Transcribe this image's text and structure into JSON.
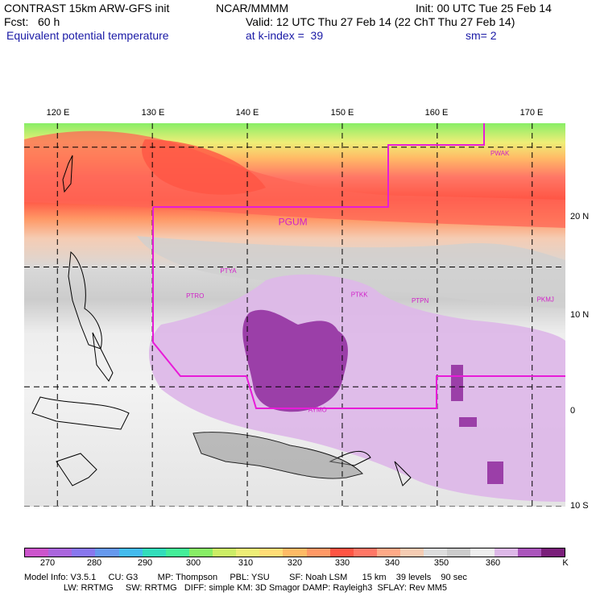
{
  "header": {
    "line1_left": "CONTRAST 15km ARW-GFS init",
    "line1_mid": "NCAR/MMMM",
    "line1_right": "Init: 00 UTC Tue 25 Feb 14",
    "line2_left": "Fcst:   60 h",
    "line2_right": "Valid: 12 UTC Thu 27 Feb 14 (22 ChT Thu 27 Feb 14)",
    "line3_left": "Equivalent potential temperature",
    "line3_mid": "at k-index =  39",
    "line3_right": "sm= 2"
  },
  "axes": {
    "lon_labels": [
      "120 E",
      "130 E",
      "140 E",
      "150 E",
      "160 E",
      "170 E"
    ],
    "lat_labels": [
      "20 N",
      "10 N",
      "0",
      "10 S"
    ],
    "lon_values": [
      120,
      130,
      140,
      150,
      160,
      170
    ],
    "lat_values": [
      20,
      10,
      0,
      -10
    ],
    "lon_range": [
      116.5,
      173.5
    ],
    "lat_range": [
      -10,
      22
    ]
  },
  "stations": [
    {
      "id": "PGUM",
      "lon": 144.8,
      "lat": 13.5
    },
    {
      "id": "PWAK",
      "lon": 166.6,
      "lat": 19.3
    },
    {
      "id": "PTYA",
      "lon": 138.0,
      "lat": 9.5
    },
    {
      "id": "PTRO",
      "lon": 134.5,
      "lat": 7.4
    },
    {
      "id": "PTKK",
      "lon": 151.8,
      "lat": 7.5
    },
    {
      "id": "PTPN",
      "lon": 158.2,
      "lat": 7.0
    },
    {
      "id": "PKMJ",
      "lon": 171.4,
      "lat": 7.1
    },
    {
      "id": "AYMO",
      "lon": 147.4,
      "lat": -2.1
    }
  ],
  "colorbar": {
    "colors": [
      "#cc55cc",
      "#aa66dd",
      "#8877ee",
      "#6699ee",
      "#44bbee",
      "#33ddbb",
      "#44ee99",
      "#88ee66",
      "#ccee66",
      "#eeee77",
      "#ffdd77",
      "#ffbb66",
      "#ff9966",
      "#ff5544",
      "#ff7766",
      "#ffaa88",
      "#f5ccb3",
      "#dddddd",
      "#cccccc",
      "#eeeeee",
      "#ddb8e8",
      "#aa55bb",
      "#7a1f7a"
    ],
    "labels": [
      "270",
      "280",
      "290",
      "300",
      "310",
      "320",
      "330",
      "340",
      "350",
      "360",
      "K"
    ],
    "label_values": [
      270,
      280,
      290,
      300,
      310,
      320,
      330,
      340,
      350,
      360
    ]
  },
  "footer": {
    "line1": "Model Info: V3.5.1     CU: G3        MP: Thompson     PBL: YSU        SF: Noah LSM      15 km    39 levels    90 sec",
    "line2": "                LW: RRTMG     SW: RRTMG   DIFF: simple KM: 3D Smagor DAMP: Rayleigh3  SFLAY: Rev MM5"
  }
}
